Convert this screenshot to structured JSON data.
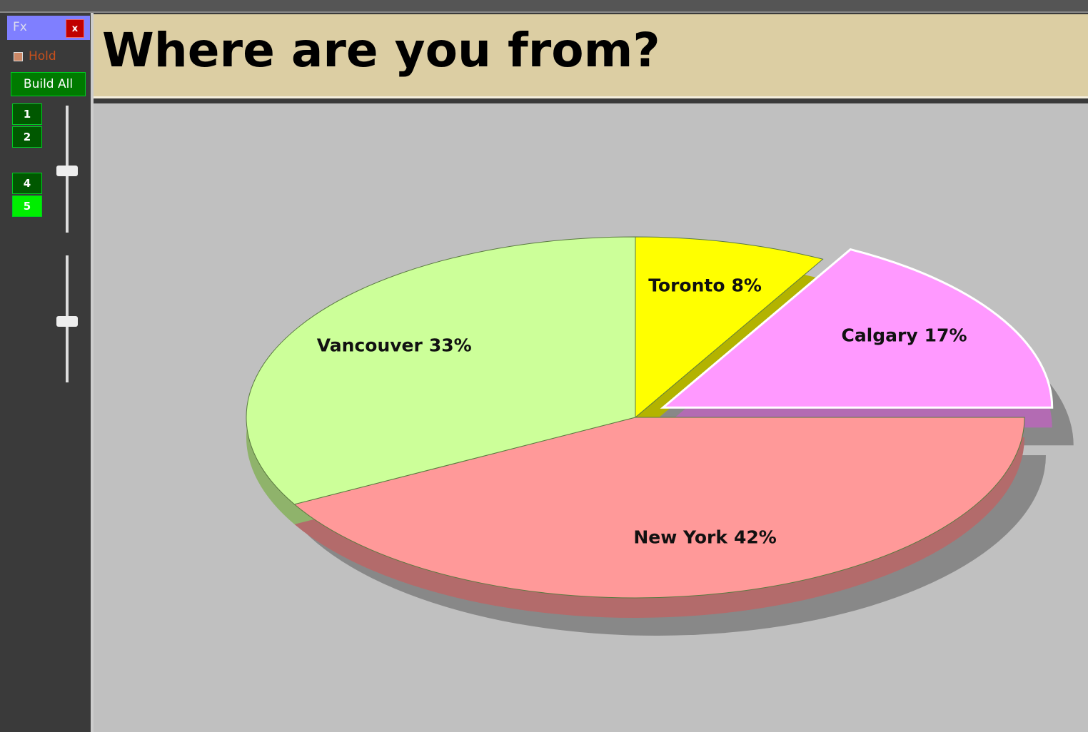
{
  "window": {
    "panel_title": "Fx",
    "close": "x",
    "hold": "Hold",
    "build_all": "Build All",
    "steps": [
      "1",
      "2",
      "4",
      "5"
    ]
  },
  "chart_data": {
    "type": "pie",
    "title": "Where are you from?",
    "categories": [
      "Toronto",
      "Calgary",
      "New York",
      "Vancouver"
    ],
    "values": [
      8,
      17,
      42,
      33
    ],
    "value_labels": [
      "8%",
      "17%",
      "42%",
      "33%"
    ],
    "colors": [
      "#ffff00",
      "#ff99ff",
      "#ff9999",
      "#ccff99"
    ],
    "explode": [
      false,
      true,
      false,
      false
    ]
  }
}
